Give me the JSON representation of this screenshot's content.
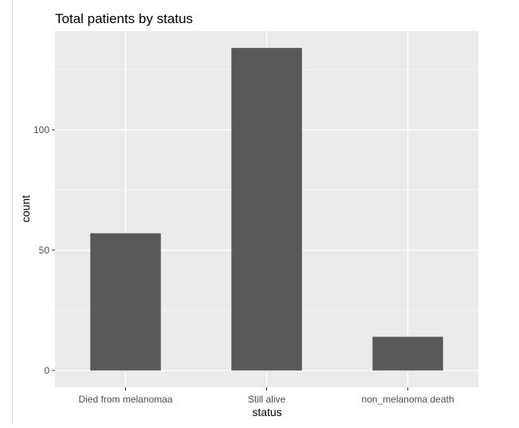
{
  "chart_data": {
    "type": "bar",
    "title": "Total patients by status",
    "xlabel": "status",
    "ylabel": "count",
    "categories": [
      "Died from melanomaa",
      "Still alive",
      "non_melanoma death"
    ],
    "values": [
      57,
      134,
      14
    ],
    "ylim": [
      -7,
      141
    ],
    "yticks": [
      0,
      50,
      100
    ],
    "ytick_labels": [
      "0",
      "50",
      "100"
    ],
    "grid": true,
    "colors": {
      "panel_bg": "#ebebeb",
      "grid_major": "#ffffff",
      "grid_minor": "#f4f4f4",
      "bar": "#595959",
      "tick_text": "#4d4d4d",
      "axis_title": "#000000"
    }
  }
}
